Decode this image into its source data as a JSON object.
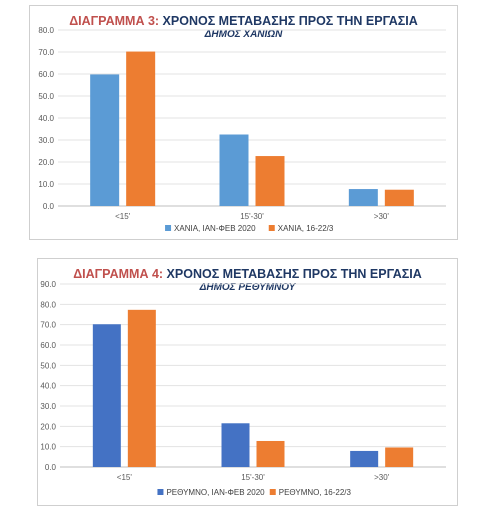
{
  "chart_data": [
    {
      "type": "bar",
      "title_prefix": "ΔΙΑΓΡΑΜΜΑ 3:",
      "title": "ΧΡΟΝΟΣ ΜΕΤΑΒΑΣΗΣ ΠΡΟΣ ΤΗΝ ΕΡΓΑΣΙΑ",
      "subtitle": "ΔΗΜΟΣ ΧΑΝΙΩΝ",
      "categories": [
        "<15'",
        "15'-30'",
        ">30'"
      ],
      "ylim": [
        0,
        80
      ],
      "ytick_step": 10,
      "yticks": [
        "0.0",
        "10.0",
        "20.0",
        "30.0",
        "40.0",
        "50.0",
        "60.0",
        "70.0",
        "80.0"
      ],
      "grid": true,
      "legend_position": "bottom",
      "series": [
        {
          "name": "ΧΑΝΙΑ, ΙΑΝ-ΦΕΒ 2020",
          "color": "#5b9bd5",
          "values": [
            59.8,
            32.5,
            7.7
          ]
        },
        {
          "name": "ΧΑΝΙΑ, 16-22/3",
          "color": "#ed7d31",
          "values": [
            70.2,
            22.7,
            7.4
          ]
        }
      ]
    },
    {
      "type": "bar",
      "title_prefix": "ΔΙΑΓΡΑΜΜΑ 4:",
      "title": "ΧΡΟΝΟΣ ΜΕΤΑΒΑΣΗΣ ΠΡΟΣ ΤΗΝ ΕΡΓΑΣΙΑ",
      "subtitle": "ΔΗΜΟΣ ΡΕΘΥΜΝΟΥ",
      "categories": [
        "<15'",
        "15'-30'",
        ">30'"
      ],
      "ylim": [
        0,
        90
      ],
      "ytick_step": 10,
      "yticks": [
        "0.0",
        "10.0",
        "20.0",
        "30.0",
        "40.0",
        "50.0",
        "60.0",
        "70.0",
        "80.0",
        "90.0"
      ],
      "grid": true,
      "legend_position": "bottom",
      "series": [
        {
          "name": "ΡΕΘΥΜΝΟ, ΙΑΝ-ΦΕΒ 2020",
          "color": "#4472c4",
          "values": [
            70.2,
            21.5,
            7.9
          ]
        },
        {
          "name": "ΡΕΘΥΜΝΟ, 16-22/3",
          "color": "#ed7d31",
          "values": [
            77.3,
            12.8,
            9.6
          ]
        }
      ]
    }
  ]
}
